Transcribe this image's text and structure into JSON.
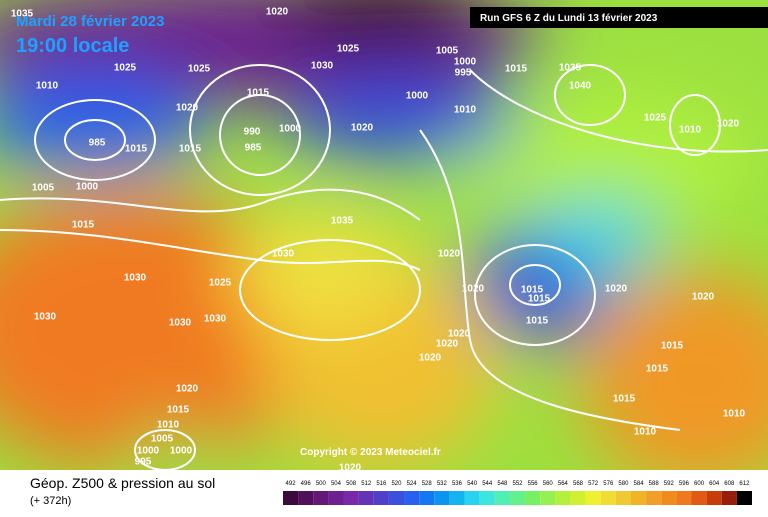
{
  "header": {
    "date": "Mardi 28 février 2023",
    "time": "19:00 locale",
    "run": "Run GFS 6 Z du Lundi 13 février 2023",
    "copyright": "Copyright © 2023 Meteociel.fr"
  },
  "footer": {
    "title": "Géop. Z500 & pression au sol",
    "lead": "(+ 372h)"
  },
  "scale": {
    "values": [
      492,
      496,
      500,
      504,
      508,
      512,
      516,
      520,
      524,
      528,
      532,
      536,
      540,
      544,
      548,
      552,
      556,
      560,
      564,
      568,
      572,
      576,
      580,
      584,
      588,
      592,
      596,
      600,
      604,
      608,
      612
    ],
    "colors": [
      "#3c0a3c",
      "#50105a",
      "#641878",
      "#6e2090",
      "#7828a8",
      "#6432b4",
      "#5040c8",
      "#3c50dc",
      "#2860f0",
      "#1478f0",
      "#0a96f0",
      "#14b4f0",
      "#28d2f0",
      "#3ce6dc",
      "#50f0b4",
      "#64f08c",
      "#78f064",
      "#96f050",
      "#b4f03c",
      "#d2f032",
      "#f0f032",
      "#f0dc32",
      "#f0c832",
      "#f0b428",
      "#f0a028",
      "#f08c1e",
      "#f0781e",
      "#e05a14",
      "#c83c0a",
      "#961e0a",
      "#000000"
    ]
  },
  "isobar_labels": [
    "1035",
    "1020",
    "1025",
    "1030",
    "1005",
    "1000",
    "995",
    "1015",
    "1035",
    "1040",
    "1025",
    "1025",
    "1010",
    "1015",
    "1000",
    "1010",
    "1020",
    "1025",
    "1010",
    "1020",
    "1020",
    "990",
    "1000",
    "985",
    "985",
    "1015",
    "1015",
    "1005",
    "1000",
    "1015",
    "1035",
    "1030",
    "1020",
    "1030",
    "1025",
    "1020",
    "1015",
    "1015",
    "1020",
    "1020",
    "1030",
    "1030",
    "1030",
    "1015",
    "1020",
    "1020",
    "1020",
    "1015",
    "1015",
    "1020",
    "1015",
    "1015",
    "1010",
    "1005",
    "1000",
    "995",
    "1000",
    "1010",
    "1010",
    "1020"
  ]
}
